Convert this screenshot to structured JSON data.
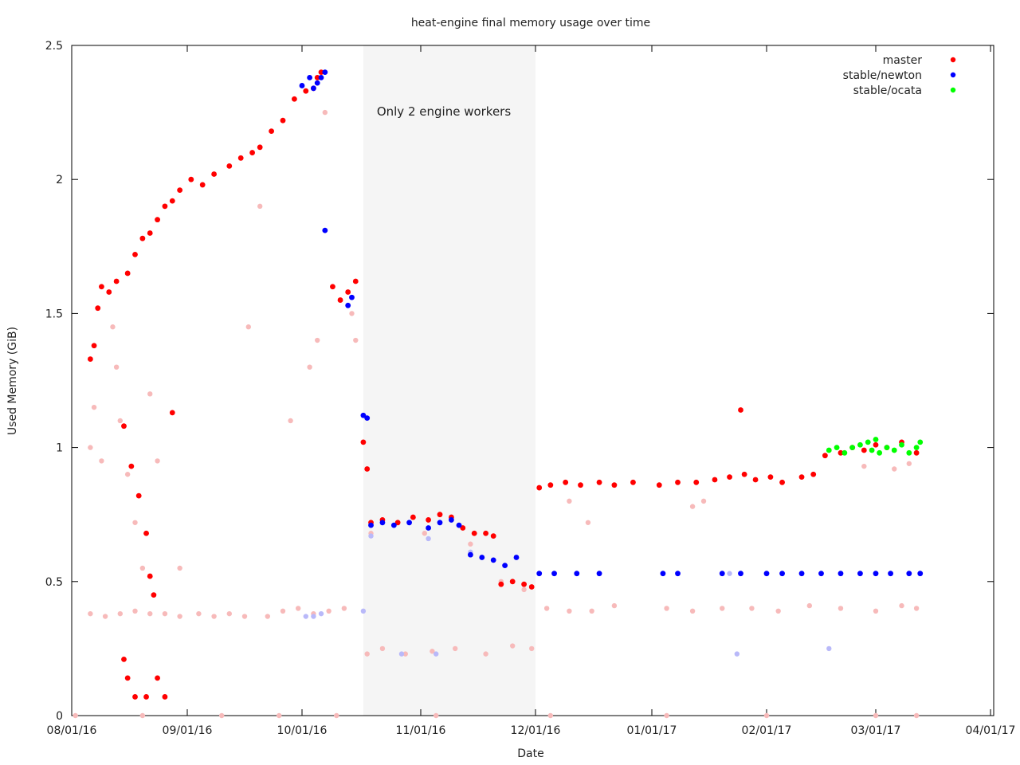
{
  "chart_data": {
    "type": "scatter",
    "title": "heat-engine final memory usage over time",
    "xlabel": "Date",
    "ylabel": "Used Memory (GiB)",
    "x_ticks": [
      "08/01/16",
      "09/01/16",
      "10/01/16",
      "11/01/16",
      "12/01/16",
      "01/01/17",
      "02/01/17",
      "03/01/17",
      "04/01/17"
    ],
    "y_ticks": [
      "0",
      "0.5",
      "1",
      "1.5",
      "2",
      "2.5"
    ],
    "ylim": [
      0,
      2.5
    ],
    "legend_position": "top-right",
    "annotation": {
      "text": "Only 2 engine workers",
      "x_start": "10/17/16",
      "x_end": "12/01/16"
    },
    "series": [
      {
        "name": "master",
        "color": "#ff0000",
        "faint_color": "#f7baba",
        "points": [
          [
            "08/06/16",
            1.33
          ],
          [
            "08/07/16",
            1.38
          ],
          [
            "08/08/16",
            1.52
          ],
          [
            "08/09/16",
            1.6
          ],
          [
            "08/11/16",
            1.58
          ],
          [
            "08/13/16",
            1.62
          ],
          [
            "08/16/16",
            1.65
          ],
          [
            "08/18/16",
            1.72
          ],
          [
            "08/20/16",
            1.78
          ],
          [
            "08/22/16",
            1.8
          ],
          [
            "08/24/16",
            1.85
          ],
          [
            "08/26/16",
            1.9
          ],
          [
            "08/28/16",
            1.92
          ],
          [
            "08/30/16",
            1.96
          ],
          [
            "09/02/16",
            2.0
          ],
          [
            "09/05/16",
            1.98
          ],
          [
            "09/08/16",
            2.02
          ],
          [
            "09/12/16",
            2.05
          ],
          [
            "09/15/16",
            2.08
          ],
          [
            "09/18/16",
            2.1
          ],
          [
            "09/20/16",
            2.12
          ],
          [
            "09/23/16",
            2.18
          ],
          [
            "09/26/16",
            2.22
          ],
          [
            "09/29/16",
            2.3
          ],
          [
            "10/02/16",
            2.33
          ],
          [
            "10/04/16",
            2.34
          ],
          [
            "10/05/16",
            2.38
          ],
          [
            "10/06/16",
            2.4
          ],
          [
            "10/09/16",
            1.6
          ],
          [
            "10/11/16",
            1.55
          ],
          [
            "10/13/16",
            1.58
          ],
          [
            "10/15/16",
            1.62
          ],
          [
            "10/17/16",
            1.02
          ],
          [
            "10/18/16",
            0.92
          ],
          [
            "08/15/16",
            1.08
          ],
          [
            "08/17/16",
            0.93
          ],
          [
            "08/19/16",
            0.82
          ],
          [
            "08/21/16",
            0.68
          ],
          [
            "08/22/16",
            0.52
          ],
          [
            "08/23/16",
            0.45
          ],
          [
            "08/15/16",
            0.21
          ],
          [
            "08/16/16",
            0.14
          ],
          [
            "08/18/16",
            0.07
          ],
          [
            "08/21/16",
            0.07
          ],
          [
            "08/24/16",
            0.14
          ],
          [
            "08/26/16",
            0.07
          ],
          [
            "08/28/16",
            1.13
          ],
          [
            "10/19/16",
            0.72
          ],
          [
            "10/22/16",
            0.73
          ],
          [
            "10/26/16",
            0.72
          ],
          [
            "10/30/16",
            0.74
          ],
          [
            "11/03/16",
            0.73
          ],
          [
            "11/06/16",
            0.75
          ],
          [
            "11/09/16",
            0.74
          ],
          [
            "11/12/16",
            0.7
          ],
          [
            "11/15/16",
            0.68
          ],
          [
            "11/18/16",
            0.68
          ],
          [
            "11/20/16",
            0.67
          ],
          [
            "11/22/16",
            0.49
          ],
          [
            "11/25/16",
            0.5
          ],
          [
            "11/28/16",
            0.49
          ],
          [
            "11/30/16",
            0.48
          ],
          [
            "12/02/16",
            0.85
          ],
          [
            "12/05/16",
            0.86
          ],
          [
            "12/09/16",
            0.87
          ],
          [
            "12/13/16",
            0.86
          ],
          [
            "12/18/16",
            0.87
          ],
          [
            "12/22/16",
            0.86
          ],
          [
            "12/27/16",
            0.87
          ],
          [
            "01/03/17",
            0.86
          ],
          [
            "01/08/17",
            0.87
          ],
          [
            "01/13/17",
            0.87
          ],
          [
            "01/18/17",
            0.88
          ],
          [
            "01/22/17",
            0.89
          ],
          [
            "01/26/17",
            0.9
          ],
          [
            "01/29/17",
            0.88
          ],
          [
            "02/02/17",
            0.89
          ],
          [
            "02/05/17",
            0.87
          ],
          [
            "02/10/17",
            0.89
          ],
          [
            "02/13/17",
            0.9
          ],
          [
            "02/16/17",
            0.97
          ],
          [
            "02/20/17",
            0.98
          ],
          [
            "02/23/17",
            1.0
          ],
          [
            "02/26/17",
            0.99
          ],
          [
            "03/01/17",
            1.01
          ],
          [
            "03/04/17",
            1.0
          ],
          [
            "03/08/17",
            1.02
          ],
          [
            "03/12/17",
            0.98
          ],
          [
            "01/25/17",
            1.14
          ]
        ],
        "faint_points": [
          [
            "08/06/16",
            0.38
          ],
          [
            "08/10/16",
            0.37
          ],
          [
            "08/14/16",
            0.38
          ],
          [
            "08/18/16",
            0.39
          ],
          [
            "08/22/16",
            0.38
          ],
          [
            "08/26/16",
            0.38
          ],
          [
            "08/30/16",
            0.37
          ],
          [
            "09/04/16",
            0.38
          ],
          [
            "09/08/16",
            0.37
          ],
          [
            "09/12/16",
            0.38
          ],
          [
            "09/16/16",
            0.37
          ],
          [
            "09/22/16",
            0.37
          ],
          [
            "09/26/16",
            0.39
          ],
          [
            "09/30/16",
            0.4
          ],
          [
            "10/04/16",
            0.38
          ],
          [
            "10/08/16",
            0.39
          ],
          [
            "10/12/16",
            0.4
          ],
          [
            "08/06/16",
            1.0
          ],
          [
            "08/07/16",
            1.15
          ],
          [
            "08/09/16",
            0.95
          ],
          [
            "08/12/16",
            1.45
          ],
          [
            "08/13/16",
            1.3
          ],
          [
            "08/14/16",
            1.1
          ],
          [
            "08/16/16",
            0.9
          ],
          [
            "08/18/16",
            0.72
          ],
          [
            "08/20/16",
            0.55
          ],
          [
            "08/22/16",
            1.2
          ],
          [
            "08/24/16",
            0.95
          ],
          [
            "08/30/16",
            0.55
          ],
          [
            "09/17/16",
            1.45
          ],
          [
            "09/20/16",
            1.9
          ],
          [
            "09/28/16",
            1.1
          ],
          [
            "10/03/16",
            1.3
          ],
          [
            "10/05/16",
            1.4
          ],
          [
            "10/07/16",
            2.25
          ],
          [
            "10/14/16",
            1.5
          ],
          [
            "10/15/16",
            1.4
          ],
          [
            "10/18/16",
            0.23
          ],
          [
            "10/22/16",
            0.25
          ],
          [
            "10/28/16",
            0.23
          ],
          [
            "11/04/16",
            0.24
          ],
          [
            "11/10/16",
            0.25
          ],
          [
            "11/18/16",
            0.23
          ],
          [
            "11/25/16",
            0.26
          ],
          [
            "11/30/16",
            0.25
          ],
          [
            "12/04/16",
            0.4
          ],
          [
            "12/10/16",
            0.39
          ],
          [
            "12/16/16",
            0.39
          ],
          [
            "12/22/16",
            0.41
          ],
          [
            "01/05/17",
            0.4
          ],
          [
            "01/12/17",
            0.39
          ],
          [
            "01/20/17",
            0.4
          ],
          [
            "01/28/17",
            0.4
          ],
          [
            "02/04/17",
            0.39
          ],
          [
            "02/12/17",
            0.41
          ],
          [
            "02/20/17",
            0.4
          ],
          [
            "03/01/17",
            0.39
          ],
          [
            "03/08/17",
            0.41
          ],
          [
            "03/12/17",
            0.4
          ],
          [
            "12/10/16",
            0.8
          ],
          [
            "12/15/16",
            0.72
          ],
          [
            "01/12/17",
            0.78
          ],
          [
            "01/15/17",
            0.8
          ],
          [
            "02/26/17",
            0.93
          ],
          [
            "03/06/17",
            0.92
          ],
          [
            "03/10/17",
            0.94
          ],
          [
            "10/19/16",
            0.68
          ],
          [
            "11/02/16",
            0.68
          ],
          [
            "11/14/16",
            0.64
          ],
          [
            "11/22/16",
            0.5
          ],
          [
            "11/28/16",
            0.47
          ],
          [
            "08/02/16",
            0.0
          ],
          [
            "08/20/16",
            0.0
          ],
          [
            "09/10/16",
            0.0
          ],
          [
            "09/25/16",
            0.0
          ],
          [
            "10/10/16",
            0.0
          ],
          [
            "11/05/16",
            0.0
          ],
          [
            "12/05/16",
            0.0
          ],
          [
            "01/05/17",
            0.0
          ],
          [
            "02/01/17",
            0.0
          ],
          [
            "03/01/17",
            0.0
          ],
          [
            "03/12/17",
            0.0
          ]
        ]
      },
      {
        "name": "stable/newton",
        "color": "#0000ff",
        "faint_color": "#b9b9f9",
        "points": [
          [
            "10/01/16",
            2.35
          ],
          [
            "10/03/16",
            2.38
          ],
          [
            "10/04/16",
            2.34
          ],
          [
            "10/05/16",
            2.36
          ],
          [
            "10/06/16",
            2.38
          ],
          [
            "10/07/16",
            2.4
          ],
          [
            "10/07/16",
            1.81
          ],
          [
            "10/13/16",
            1.53
          ],
          [
            "10/14/16",
            1.56
          ],
          [
            "10/17/16",
            1.12
          ],
          [
            "10/18/16",
            1.11
          ],
          [
            "10/19/16",
            0.71
          ],
          [
            "10/22/16",
            0.72
          ],
          [
            "10/25/16",
            0.71
          ],
          [
            "10/29/16",
            0.72
          ],
          [
            "11/03/16",
            0.7
          ],
          [
            "11/06/16",
            0.72
          ],
          [
            "11/09/16",
            0.73
          ],
          [
            "11/11/16",
            0.71
          ],
          [
            "11/14/16",
            0.6
          ],
          [
            "11/17/16",
            0.59
          ],
          [
            "11/20/16",
            0.58
          ],
          [
            "11/23/16",
            0.56
          ],
          [
            "11/26/16",
            0.59
          ],
          [
            "12/02/16",
            0.53
          ],
          [
            "12/06/16",
            0.53
          ],
          [
            "12/12/16",
            0.53
          ],
          [
            "12/18/16",
            0.53
          ],
          [
            "01/04/17",
            0.53
          ],
          [
            "01/08/17",
            0.53
          ],
          [
            "01/20/17",
            0.53
          ],
          [
            "01/25/17",
            0.53
          ],
          [
            "02/01/17",
            0.53
          ],
          [
            "02/05/17",
            0.53
          ],
          [
            "02/10/17",
            0.53
          ],
          [
            "02/15/17",
            0.53
          ],
          [
            "02/20/17",
            0.53
          ],
          [
            "02/25/17",
            0.53
          ],
          [
            "03/01/17",
            0.53
          ],
          [
            "03/05/17",
            0.53
          ],
          [
            "03/10/17",
            0.53
          ],
          [
            "03/13/17",
            0.53
          ]
        ],
        "faint_points": [
          [
            "10/02/16",
            0.37
          ],
          [
            "10/04/16",
            0.37
          ],
          [
            "10/06/16",
            0.38
          ],
          [
            "10/17/16",
            0.39
          ],
          [
            "10/19/16",
            0.67
          ],
          [
            "11/03/16",
            0.66
          ],
          [
            "11/14/16",
            0.61
          ],
          [
            "10/27/16",
            0.23
          ],
          [
            "11/05/16",
            0.23
          ],
          [
            "01/24/17",
            0.23
          ],
          [
            "02/17/17",
            0.25
          ],
          [
            "01/22/17",
            0.53
          ]
        ]
      },
      {
        "name": "stable/ocata",
        "color": "#00ff00",
        "faint_color": "#b8f7b8",
        "points": [
          [
            "02/17/17",
            0.99
          ],
          [
            "02/19/17",
            1.0
          ],
          [
            "02/21/17",
            0.98
          ],
          [
            "02/23/17",
            1.0
          ],
          [
            "02/25/17",
            1.01
          ],
          [
            "02/27/17",
            1.02
          ],
          [
            "02/28/17",
            0.99
          ],
          [
            "03/01/17",
            1.03
          ],
          [
            "03/02/17",
            0.98
          ],
          [
            "03/04/17",
            1.0
          ],
          [
            "03/06/17",
            0.99
          ],
          [
            "03/08/17",
            1.01
          ],
          [
            "03/10/17",
            0.98
          ],
          [
            "03/12/17",
            1.0
          ],
          [
            "03/13/17",
            1.02
          ]
        ],
        "faint_points": []
      }
    ]
  }
}
